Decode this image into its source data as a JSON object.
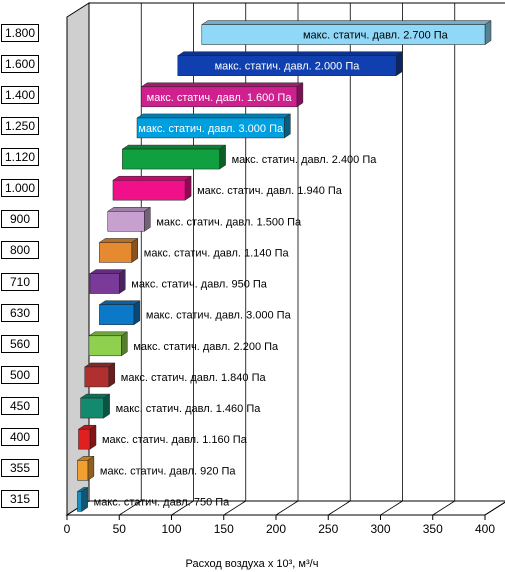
{
  "chart_data": {
    "type": "bar",
    "orientation": "horizontal",
    "three_d": true,
    "categories": [
      "315",
      "355",
      "400",
      "450",
      "500",
      "560",
      "630",
      "710",
      "800",
      "900",
      "1.000",
      "1.120",
      "1.250",
      "1.400",
      "1.600",
      "1.800"
    ],
    "ranges": [
      [
        10,
        14
      ],
      [
        10,
        20
      ],
      [
        11,
        22
      ],
      [
        13,
        35
      ],
      [
        17,
        40
      ],
      [
        21,
        52
      ],
      [
        31,
        64
      ],
      [
        22,
        50
      ],
      [
        31,
        62
      ],
      [
        39,
        74
      ],
      [
        44,
        113
      ],
      [
        53,
        146
      ],
      [
        67,
        208
      ],
      [
        71,
        220
      ],
      [
        106,
        315
      ],
      [
        129,
        400
      ]
    ],
    "bar_colors": [
      "#1a8fbf",
      "#f0a030",
      "#e02020",
      "#138a6e",
      "#b03030",
      "#8fd14f",
      "#0b78c8",
      "#7a3a9a",
      "#e58a30",
      "#c8a0d0",
      "#f0108a",
      "#10a040",
      "#00a0e0",
      "#d02090",
      "#1040b0",
      "#90d8f8"
    ],
    "labels": [
      "макс. статич. давл. 750 Па",
      "макс. статич. давл. 920 Па",
      "макс. статич. давл. 1.160 Па",
      "макс. статич. давл. 1.460 Па",
      "макс. статич. давл. 1.840 Па",
      "макс. статич. давл. 2.200 Па",
      "макс. статич. давл. 3.000 Па",
      "макс. статич. давл. 950 Па",
      "макс. статич. давл. 1.140 Па",
      "макс. статич. давл. 1.500 Па",
      "макс. статич. давл. 1.940 Па",
      "макс. статич. давл. 2.400 Па",
      "макс. статич. давл. 3.000 Па",
      "макс. статич. давл. 1.600 Па",
      "макс. статич. давл. 2.000 Па",
      "макс. статич. давл. 2.700 Па"
    ],
    "label_inside": [
      false,
      false,
      false,
      false,
      false,
      false,
      false,
      false,
      false,
      false,
      false,
      false,
      true,
      true,
      true,
      true
    ],
    "label_colors": [
      "#000000",
      "#000000",
      "#000000",
      "#000000",
      "#000000",
      "#000000",
      "#000000",
      "#000000",
      "#000000",
      "#000000",
      "#000000",
      "#000000",
      "#ffffff",
      "#ffffff",
      "#ffffff",
      "#000000"
    ],
    "xlabel": "Расход воздуха x 10³, м³/ч",
    "xticks": [
      0,
      50,
      100,
      150,
      200,
      250,
      300,
      350,
      400
    ],
    "xlim": [
      0,
      400
    ],
    "grid": true
  }
}
